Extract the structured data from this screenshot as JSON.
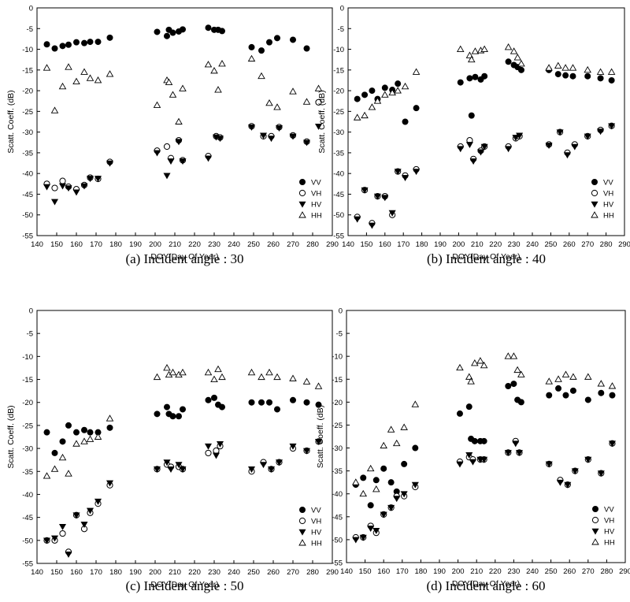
{
  "chart_data": [
    {
      "type": "scatter",
      "caption": "(a) Incident angle : 30",
      "xlabel": "DOY(Day Of Year)",
      "ylabel": "Scatt. Coeff. (dB)",
      "xlim": [
        140,
        290
      ],
      "ylim": [
        -55,
        0
      ],
      "xticks": [
        "140",
        "150",
        "160",
        "170",
        "180",
        "190",
        "200",
        "210",
        "220",
        "230",
        "240",
        "250",
        "260",
        "270",
        "280",
        "290"
      ],
      "yticks": [
        "0",
        "-5",
        "-10",
        "-15",
        "-20",
        "-25",
        "-30",
        "-35",
        "-40",
        "-45",
        "-50",
        "-55"
      ],
      "grid": false,
      "legend_position": "bottom-right",
      "series": [
        {
          "name": "VV",
          "marker": "filled-circle",
          "x": [
            145,
            149,
            153,
            156,
            160,
            164,
            167,
            171,
            177,
            201,
            206,
            207,
            209,
            212,
            214,
            227,
            230,
            232,
            234,
            249,
            254,
            258,
            262,
            270,
            277
          ],
          "y": [
            -8.8,
            -9.8,
            -9.2,
            -8.9,
            -8.3,
            -8.5,
            -8.2,
            -8.2,
            -7.2,
            -5.8,
            -6.8,
            -5.3,
            -6.0,
            -5.7,
            -5.2,
            -4.8,
            -5.3,
            -5.3,
            -5.6,
            -9.5,
            -10.3,
            -8.3,
            -7.3,
            -7.7,
            -9.8
          ]
        },
        {
          "name": "VH",
          "marker": "open-circle",
          "x": [
            145,
            149,
            153,
            156,
            160,
            164,
            167,
            171,
            177,
            201,
            206,
            208,
            212,
            214,
            227,
            231,
            233,
            249,
            255,
            259,
            263,
            270,
            277,
            283
          ],
          "y": [
            -42.5,
            -43.5,
            -41.8,
            -43.2,
            -43.8,
            -42.8,
            -41.0,
            -41.3,
            -37.2,
            -34.5,
            -33.5,
            -36.3,
            -32.0,
            -36.8,
            -35.8,
            -31.0,
            -31.3,
            -28.6,
            -31.0,
            -31.0,
            -28.8,
            -30.8,
            -32.3,
            -22.8
          ]
        },
        {
          "name": "HV",
          "marker": "filled-triangle-down",
          "x": [
            145,
            149,
            153,
            156,
            160,
            164,
            167,
            171,
            177,
            201,
            206,
            208,
            212,
            214,
            227,
            231,
            233,
            249,
            255,
            259,
            263,
            270,
            277,
            283
          ],
          "y": [
            -43.2,
            -46.8,
            -43.0,
            -43.5,
            -44.5,
            -43.0,
            -41.2,
            -41.2,
            -37.5,
            -35.0,
            -40.5,
            -37.0,
            -32.3,
            -37.0,
            -36.3,
            -31.2,
            -31.5,
            -28.8,
            -30.8,
            -31.5,
            -29.0,
            -31.0,
            -32.5,
            -28.6
          ]
        },
        {
          "name": "HH",
          "marker": "open-triangle-up",
          "x": [
            145,
            149,
            153,
            156,
            160,
            164,
            167,
            171,
            177,
            201,
            206,
            207,
            209,
            212,
            214,
            227,
            230,
            232,
            234,
            249,
            254,
            258,
            262,
            270,
            277,
            283
          ],
          "y": [
            -14.5,
            -24.8,
            -19.0,
            -14.3,
            -17.8,
            -15.5,
            -17.0,
            -17.5,
            -16.0,
            -23.5,
            -17.5,
            -18.0,
            -21.0,
            -27.5,
            -19.5,
            -13.7,
            -15.2,
            -19.8,
            -13.5,
            -12.3,
            -16.5,
            -23.0,
            -24.0,
            -20.2,
            -22.7,
            -19.5
          ]
        }
      ]
    },
    {
      "type": "scatter",
      "caption": "(b) Incident angle : 40",
      "xlabel": "DOY(Day Of Year)",
      "ylabel": "Scatt. Coeff. (dB)",
      "xlim": [
        140,
        290
      ],
      "ylim": [
        -55,
        0
      ],
      "xticks": [
        "140",
        "150",
        "160",
        "170",
        "180",
        "190",
        "200",
        "210",
        "220",
        "230",
        "240",
        "250",
        "260",
        "270",
        "280",
        "290"
      ],
      "yticks": [
        "0",
        "-5",
        "-10",
        "-15",
        "-20",
        "-25",
        "-30",
        "-35",
        "-40",
        "-45",
        "-50",
        "-55"
      ],
      "grid": false,
      "legend_position": "bottom-right",
      "series": [
        {
          "name": "VV",
          "marker": "filled-circle",
          "x": [
            145,
            149,
            153,
            156,
            160,
            164,
            167,
            171,
            177,
            201,
            206,
            207,
            209,
            212,
            214,
            227,
            230,
            232,
            234,
            249,
            254,
            258,
            262,
            270,
            277,
            283
          ],
          "y": [
            -22.0,
            -21.0,
            -20.0,
            -22.0,
            -19.3,
            -19.8,
            -18.3,
            -27.5,
            -24.2,
            -18.0,
            -17.0,
            -26.0,
            -16.7,
            -17.3,
            -16.5,
            -13.0,
            -13.8,
            -14.3,
            -15.0,
            -15.0,
            -16.0,
            -16.3,
            -16.5,
            -16.5,
            -17.0,
            -17.5
          ]
        },
        {
          "name": "VH",
          "marker": "open-circle",
          "x": [
            145,
            149,
            153,
            156,
            160,
            164,
            167,
            171,
            177,
            201,
            206,
            208,
            212,
            214,
            227,
            231,
            233,
            249,
            255,
            259,
            263,
            270,
            277,
            283
          ],
          "y": [
            -50.5,
            -44.0,
            -52.0,
            -45.5,
            -45.5,
            -50.0,
            -39.5,
            -40.5,
            -39.0,
            -33.5,
            -32.0,
            -36.5,
            -34.5,
            -33.5,
            -33.5,
            -31.5,
            -31.0,
            -33.0,
            -30.0,
            -35.0,
            -33.0,
            -31.0,
            -29.5,
            -28.5
          ]
        },
        {
          "name": "HV",
          "marker": "filled-triangle-down",
          "x": [
            145,
            149,
            153,
            156,
            160,
            164,
            167,
            171,
            177,
            201,
            206,
            208,
            212,
            214,
            227,
            231,
            233,
            249,
            255,
            259,
            263,
            270,
            277,
            283
          ],
          "y": [
            -51.0,
            -44.0,
            -52.5,
            -45.5,
            -45.8,
            -49.5,
            -39.5,
            -41.0,
            -39.5,
            -34.0,
            -33.0,
            -37.0,
            -34.8,
            -33.5,
            -34.0,
            -31.3,
            -30.8,
            -33.2,
            -30.0,
            -35.5,
            -33.5,
            -31.0,
            -29.8,
            -28.5
          ]
        },
        {
          "name": "HH",
          "marker": "open-triangle-up",
          "x": [
            145,
            149,
            153,
            156,
            160,
            164,
            167,
            171,
            177,
            201,
            206,
            207,
            209,
            212,
            214,
            227,
            230,
            232,
            234,
            249,
            254,
            258,
            262,
            270,
            277,
            283
          ],
          "y": [
            -26.5,
            -26.0,
            -24.0,
            -22.5,
            -21.0,
            -20.5,
            -20.0,
            -19.0,
            -15.5,
            -10.0,
            -11.5,
            -12.5,
            -10.5,
            -10.3,
            -10.0,
            -9.5,
            -10.5,
            -12.0,
            -13.5,
            -14.5,
            -14.0,
            -14.5,
            -14.5,
            -15.0,
            -15.5,
            -15.5
          ]
        }
      ]
    },
    {
      "type": "scatter",
      "caption": "(c) Incident angle : 50",
      "xlabel": "DOY(Day Of Year)",
      "ylabel": "Scatt. Coeff. (dB)",
      "xlim": [
        140,
        290
      ],
      "ylim": [
        -55,
        0
      ],
      "xticks": [
        "140",
        "150",
        "160",
        "170",
        "180",
        "190",
        "200",
        "210",
        "220",
        "230",
        "240",
        "250",
        "260",
        "270",
        "280",
        "290"
      ],
      "yticks": [
        "0",
        "-5",
        "-10",
        "-15",
        "-20",
        "-25",
        "-30",
        "-35",
        "-40",
        "-45",
        "-50",
        "-55"
      ],
      "grid": false,
      "legend_position": "bottom-right",
      "series": [
        {
          "name": "VV",
          "marker": "filled-circle",
          "x": [
            145,
            149,
            153,
            156,
            160,
            164,
            167,
            171,
            177,
            201,
            206,
            207,
            209,
            212,
            214,
            227,
            230,
            232,
            234,
            249,
            254,
            258,
            262,
            270,
            277,
            283
          ],
          "y": [
            -26.5,
            -31.0,
            -28.5,
            -25.0,
            -26.5,
            -26.0,
            -26.5,
            -26.5,
            -25.5,
            -22.5,
            -21.0,
            -22.5,
            -23.0,
            -23.0,
            -21.5,
            -19.5,
            -19.0,
            -20.5,
            -21.0,
            -20.0,
            -20.0,
            -20.0,
            -21.5,
            -19.5,
            -20.0,
            -20.5
          ]
        },
        {
          "name": "VH",
          "marker": "open-circle",
          "x": [
            145,
            149,
            153,
            156,
            160,
            164,
            167,
            171,
            177,
            201,
            206,
            208,
            212,
            214,
            227,
            231,
            233,
            249,
            255,
            259,
            263,
            270,
            277,
            283
          ],
          "y": [
            -50.0,
            -50.0,
            -48.5,
            -52.5,
            -44.5,
            -47.5,
            -44.0,
            -42.0,
            -38.0,
            -34.5,
            -33.5,
            -34.0,
            -34.0,
            -34.5,
            -31.0,
            -30.5,
            -29.5,
            -35.0,
            -33.0,
            -34.5,
            -33.0,
            -30.0,
            -30.5,
            -28.5
          ]
        },
        {
          "name": "HV",
          "marker": "filled-triangle-down",
          "x": [
            145,
            149,
            153,
            156,
            160,
            164,
            167,
            171,
            177,
            201,
            206,
            208,
            212,
            214,
            227,
            231,
            233,
            249,
            255,
            259,
            263,
            270,
            277,
            283
          ],
          "y": [
            -50.0,
            -49.5,
            -47.0,
            -53.0,
            -44.5,
            -46.5,
            -43.5,
            -41.5,
            -37.5,
            -34.5,
            -33.0,
            -34.5,
            -33.5,
            -34.5,
            -29.5,
            -31.5,
            -29.0,
            -34.5,
            -33.5,
            -34.5,
            -33.0,
            -29.5,
            -30.5,
            -28.5
          ]
        },
        {
          "name": "HH",
          "marker": "open-triangle-up",
          "x": [
            145,
            149,
            153,
            156,
            160,
            164,
            167,
            171,
            177,
            201,
            206,
            207,
            209,
            212,
            214,
            227,
            230,
            232,
            234,
            249,
            254,
            258,
            262,
            270,
            277,
            283
          ],
          "y": [
            -36.0,
            -34.5,
            -32.0,
            -35.5,
            -29.0,
            -28.5,
            -28.0,
            -27.5,
            -23.5,
            -14.5,
            -12.5,
            -14.0,
            -13.5,
            -14.0,
            -13.5,
            -13.5,
            -15.0,
            -12.8,
            -14.5,
            -13.5,
            -14.5,
            -13.5,
            -14.5,
            -14.8,
            -15.5,
            -16.5
          ]
        }
      ]
    },
    {
      "type": "scatter",
      "caption": "(d) Incident angle : 60",
      "xlabel": "DOY(Day Of Year)",
      "ylabel": "Scatt. Coeff. (dB)",
      "xlim": [
        140,
        290
      ],
      "ylim": [
        -55,
        0
      ],
      "xticks": [
        "140",
        "150",
        "160",
        "170",
        "180",
        "190",
        "200",
        "210",
        "220",
        "230",
        "240",
        "250",
        "260",
        "270",
        "280",
        "290"
      ],
      "yticks": [
        "0",
        "-5",
        "-10",
        "-15",
        "-20",
        "-25",
        "-30",
        "-35",
        "-40",
        "-45",
        "-50",
        "-55"
      ],
      "grid": false,
      "legend_position": "bottom-right",
      "series": [
        {
          "name": "VV",
          "marker": "filled-circle",
          "x": [
            145,
            149,
            153,
            156,
            160,
            164,
            167,
            171,
            177,
            201,
            206,
            207,
            209,
            212,
            214,
            227,
            230,
            232,
            234,
            249,
            254,
            258,
            262,
            270,
            277,
            283
          ],
          "y": [
            -38.0,
            -36.5,
            -42.5,
            -37.0,
            -34.5,
            -37.5,
            -39.5,
            -33.5,
            -30.0,
            -22.5,
            -21.0,
            -28.0,
            -28.5,
            -28.5,
            -28.5,
            -16.5,
            -16.0,
            -19.5,
            -20.0,
            -18.5,
            -17.0,
            -18.5,
            -17.5,
            -19.5,
            -18.0,
            -18.5
          ]
        },
        {
          "name": "VH",
          "marker": "open-circle",
          "x": [
            145,
            149,
            153,
            156,
            160,
            164,
            167,
            171,
            177,
            201,
            206,
            208,
            212,
            214,
            227,
            231,
            233,
            249,
            255,
            259,
            263,
            270,
            277,
            283
          ],
          "y": [
            -49.5,
            -49.5,
            -47.0,
            -48.5,
            -44.5,
            -43.0,
            -40.5,
            -40.5,
            -38.5,
            -33.0,
            -32.0,
            -32.5,
            -32.5,
            -32.5,
            -31.0,
            -28.5,
            -31.0,
            -33.5,
            -37.0,
            -38.0,
            -35.0,
            -32.5,
            -35.5,
            -29.0
          ]
        },
        {
          "name": "HV",
          "marker": "filled-triangle-down",
          "x": [
            145,
            149,
            153,
            156,
            160,
            164,
            167,
            171,
            177,
            201,
            206,
            208,
            212,
            214,
            227,
            231,
            233,
            249,
            255,
            259,
            263,
            270,
            277,
            283
          ],
          "y": [
            -50.0,
            -49.5,
            -47.5,
            -48.0,
            -44.5,
            -43.0,
            -41.0,
            -40.0,
            -38.0,
            -33.5,
            -31.5,
            -33.0,
            -32.5,
            -32.5,
            -31.0,
            -29.0,
            -31.0,
            -33.5,
            -37.5,
            -38.0,
            -35.0,
            -32.5,
            -35.5,
            -29.0
          ]
        },
        {
          "name": "HH",
          "marker": "open-triangle-up",
          "x": [
            145,
            149,
            153,
            156,
            160,
            164,
            167,
            171,
            177,
            201,
            206,
            207,
            209,
            212,
            214,
            227,
            230,
            232,
            234,
            249,
            254,
            258,
            262,
            270,
            277,
            283
          ],
          "y": [
            -37.5,
            -40.0,
            -34.5,
            -39.0,
            -29.5,
            -26.0,
            -29.0,
            -25.5,
            -20.5,
            -12.5,
            -14.5,
            -15.5,
            -11.5,
            -11.0,
            -12.0,
            -10.0,
            -10.0,
            -13.0,
            -14.0,
            -15.5,
            -15.0,
            -14.0,
            -14.5,
            -14.5,
            -16.0,
            -16.5
          ]
        }
      ]
    }
  ]
}
